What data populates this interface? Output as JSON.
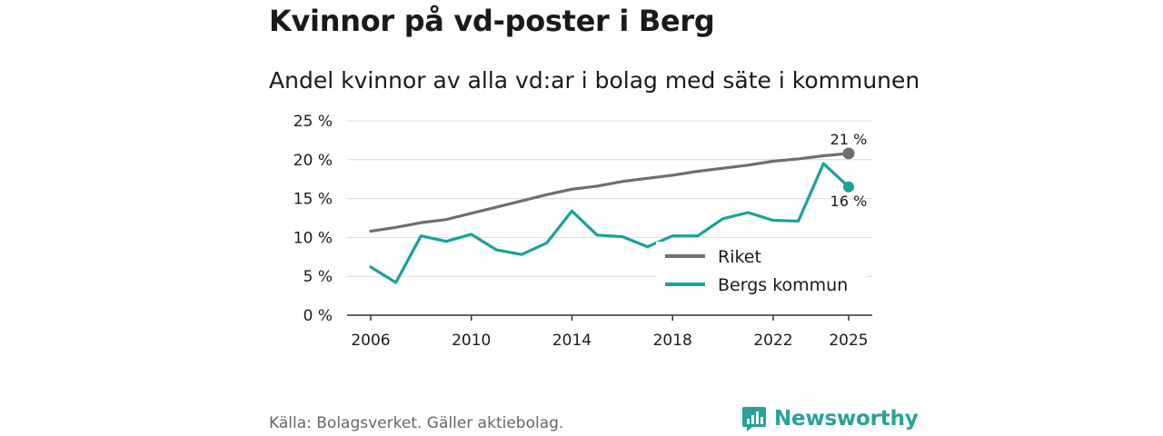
{
  "title": "Kvinnor på vd-poster i Berg",
  "subtitle": "Andel kvinnor av alla vd:ar i bolag med säte i kommunen",
  "source": "Källa: Bolagsverket. Gäller aktiebolag.",
  "brand": {
    "name": "Newsworthy",
    "icon": "newsworthy-logo-icon",
    "color": "#2aa198"
  },
  "chart_data": {
    "type": "line",
    "title": "Kvinnor på vd-poster i Berg",
    "subtitle": "Andel kvinnor av alla vd:ar i bolag med säte i kommunen",
    "xlabel": "",
    "ylabel": "",
    "x": [
      2006,
      2007,
      2008,
      2009,
      2010,
      2011,
      2012,
      2013,
      2014,
      2015,
      2016,
      2017,
      2018,
      2019,
      2020,
      2021,
      2022,
      2023,
      2024,
      2025
    ],
    "xticks": [
      2006,
      2010,
      2014,
      2018,
      2022,
      2025
    ],
    "xtick_labels": [
      "2006",
      "2010",
      "2014",
      "2018",
      "2022",
      "2025"
    ],
    "ylim": [
      0,
      25
    ],
    "yticks": [
      0,
      5,
      10,
      15,
      20,
      25
    ],
    "ytick_labels": [
      "0 %",
      "5 %",
      "10 %",
      "15 %",
      "20 %",
      "25 %"
    ],
    "grid": true,
    "legend_position": "bottom-right",
    "series": [
      {
        "name": "Riket",
        "color": "#6e6e73",
        "values": [
          10.8,
          11.3,
          11.9,
          12.3,
          13.1,
          13.9,
          14.7,
          15.5,
          16.2,
          16.6,
          17.2,
          17.6,
          18.0,
          18.5,
          18.9,
          19.3,
          19.8,
          20.1,
          20.5,
          20.8
        ],
        "end_label": "21 %"
      },
      {
        "name": "Bergs kommun",
        "color": "#1aa198",
        "values": [
          6.2,
          4.2,
          10.2,
          9.5,
          10.4,
          8.4,
          7.8,
          9.3,
          13.4,
          10.3,
          10.1,
          8.8,
          10.2,
          10.2,
          12.4,
          13.2,
          12.2,
          12.1,
          19.5,
          16.5
        ],
        "end_label": "16 %"
      }
    ]
  }
}
